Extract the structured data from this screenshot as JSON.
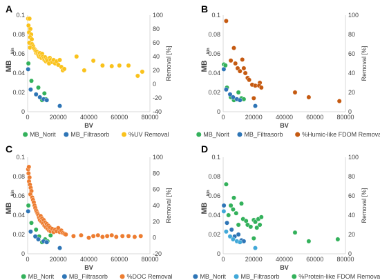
{
  "chart_data": [
    {
      "panel": "A",
      "type": "scatter",
      "xlabel": "BV",
      "ylabel": "MB",
      "ylabel_sub": "kin",
      "y2label": "Removal [%]",
      "xlim": [
        0,
        80000
      ],
      "ylim": [
        0,
        0.1
      ],
      "y2lim": [
        -40,
        100
      ],
      "xticks": [
        "0",
        "20000",
        "40000",
        "60000",
        "80000"
      ],
      "yticks": [
        "0",
        "0.02",
        "0.04",
        "0.06",
        "0.08",
        "0.1"
      ],
      "y2ticks": [
        "-40",
        "-20",
        "0",
        "20",
        "40",
        "60",
        "80",
        "100"
      ],
      "series": [
        {
          "name": "MB_Norit",
          "axis": "left",
          "color": "#33b15b",
          "points": [
            [
              500,
              0.05
            ],
            [
              2500,
              0.032
            ],
            [
              7000,
              0.025
            ],
            [
              9500,
              0.012
            ],
            [
              11000,
              0.019
            ],
            [
              12000,
              0.013
            ]
          ]
        },
        {
          "name": "MB_Filtrasorb",
          "axis": "left",
          "color": "#2e75b6",
          "points": [
            [
              300,
              0.044
            ],
            [
              2000,
              0.023
            ],
            [
              5500,
              0.018
            ],
            [
              8000,
              0.015
            ],
            [
              10500,
              0.013
            ],
            [
              12500,
              0.012
            ],
            [
              21000,
              0.006
            ]
          ]
        },
        {
          "name": "%UV Removal",
          "axis": "right",
          "color": "#fac21b",
          "points": [
            [
              300,
              95
            ],
            [
              1200,
              95
            ],
            [
              600,
              85
            ],
            [
              1800,
              80
            ],
            [
              900,
              75
            ],
            [
              2300,
              72
            ],
            [
              1600,
              68
            ],
            [
              2700,
              65
            ],
            [
              1100,
              60
            ],
            [
              2900,
              58
            ],
            [
              3600,
              55
            ],
            [
              1500,
              53
            ],
            [
              4000,
              52
            ],
            [
              4800,
              50
            ],
            [
              5200,
              48
            ],
            [
              5600,
              45
            ],
            [
              6000,
              47
            ],
            [
              6500,
              44
            ],
            [
              7000,
              42
            ],
            [
              7500,
              40
            ],
            [
              8000,
              45
            ],
            [
              8500,
              41
            ],
            [
              9000,
              38
            ],
            [
              9500,
              44
            ],
            [
              10000,
              40
            ],
            [
              10500,
              37
            ],
            [
              11000,
              35
            ],
            [
              11500,
              39
            ],
            [
              12000,
              33
            ],
            [
              12500,
              36
            ],
            [
              13000,
              34
            ],
            [
              14000,
              30
            ],
            [
              14500,
              38
            ],
            [
              15000,
              35
            ],
            [
              16000,
              32
            ],
            [
              17000,
              35
            ],
            [
              18000,
              30
            ],
            [
              19000,
              33
            ],
            [
              20000,
              28
            ],
            [
              21000,
              35
            ],
            [
              22000,
              25
            ],
            [
              23000,
              20
            ],
            [
              24000,
              22
            ],
            [
              32000,
              40
            ],
            [
              37000,
              20
            ],
            [
              43000,
              34
            ],
            [
              49000,
              27
            ],
            [
              55000,
              26
            ],
            [
              60000,
              27
            ],
            [
              66000,
              27
            ],
            [
              72000,
              12
            ],
            [
              75000,
              18
            ]
          ]
        }
      ]
    },
    {
      "panel": "B",
      "type": "scatter",
      "xlabel": "BV",
      "ylabel": "MB",
      "ylabel_sub": "kin",
      "y2label": "Removal [%]",
      "xlim": [
        0,
        80000
      ],
      "ylim": [
        0,
        0.1
      ],
      "y2lim": [
        0,
        100
      ],
      "xticks": [
        "0",
        "20000",
        "40000",
        "60000",
        "80000"
      ],
      "yticks": [
        "0",
        "0.02",
        "0.04",
        "0.06",
        "0.08",
        "0.1"
      ],
      "y2ticks": [
        "0",
        "20",
        "40",
        "60",
        "80",
        "100"
      ],
      "series": [
        {
          "name": "MB_Norit",
          "axis": "left",
          "color": "#33b15b",
          "points": [
            [
              500,
              0.049
            ],
            [
              1500,
              0.048
            ],
            [
              2500,
              0.025
            ],
            [
              5000,
              0.015
            ],
            [
              7000,
              0.012
            ],
            [
              10000,
              0.02
            ],
            [
              12000,
              0.014
            ],
            [
              13500,
              0.013
            ]
          ]
        },
        {
          "name": "MB_Filtrasorb",
          "axis": "left",
          "color": "#2e75b6",
          "points": [
            [
              400,
              0.044
            ],
            [
              2000,
              0.023
            ],
            [
              4500,
              0.018
            ],
            [
              6500,
              0.015
            ],
            [
              9000,
              0.013
            ],
            [
              11000,
              0.012
            ],
            [
              21000,
              0.006
            ]
          ]
        },
        {
          "name": "%Humic-like FDOM Removal",
          "axis": "right",
          "color": "#c55a11",
          "points": [
            [
              2000,
              94
            ],
            [
              7000,
              66
            ],
            [
              5000,
              53
            ],
            [
              8000,
              50
            ],
            [
              9500,
              45
            ],
            [
              12500,
              54
            ],
            [
              13500,
              45
            ],
            [
              11000,
              42
            ],
            [
              14500,
              40
            ],
            [
              16000,
              35
            ],
            [
              17000,
              33
            ],
            [
              19000,
              28
            ],
            [
              21000,
              27
            ],
            [
              24000,
              30
            ],
            [
              23500,
              27
            ],
            [
              25000,
              25
            ],
            [
              20000,
              14
            ],
            [
              47000,
              20
            ],
            [
              56000,
              15
            ],
            [
              76000,
              11
            ]
          ]
        }
      ]
    },
    {
      "panel": "C",
      "type": "scatter",
      "xlabel": "BV",
      "ylabel": "MB",
      "ylabel_sub": "kin",
      "y2label": "Removal [%]",
      "xlim": [
        0,
        80000
      ],
      "ylim": [
        0,
        0.1
      ],
      "y2lim": [
        -20,
        100
      ],
      "xticks": [
        "0",
        "20000",
        "40000",
        "60000",
        "80000"
      ],
      "yticks": [
        "0",
        "0.02",
        "0.04",
        "0.06",
        "0.08",
        "0.1"
      ],
      "y2ticks": [
        "-20",
        "0",
        "20",
        "40",
        "60",
        "80",
        "100"
      ],
      "series": [
        {
          "name": "MB_Norit",
          "axis": "left",
          "color": "#33b15b",
          "points": [
            [
              500,
              0.05
            ],
            [
              2500,
              0.032
            ],
            [
              5500,
              0.025
            ],
            [
              7500,
              0.018
            ],
            [
              9500,
              0.012
            ],
            [
              11500,
              0.015
            ],
            [
              13000,
              0.013
            ],
            [
              15000,
              0.019
            ]
          ]
        },
        {
          "name": "MB_Filtrasorb",
          "axis": "left",
          "color": "#2e75b6",
          "points": [
            [
              300,
              0.044
            ],
            [
              2000,
              0.023
            ],
            [
              5000,
              0.018
            ],
            [
              7000,
              0.015
            ],
            [
              10500,
              0.013
            ],
            [
              12500,
              0.012
            ],
            [
              21000,
              0.006
            ]
          ]
        },
        {
          "name": "%DOC Removal",
          "axis": "right",
          "color": "#ed7d31",
          "points": [
            [
              300,
              85
            ],
            [
              800,
              88
            ],
            [
              600,
              80
            ],
            [
              1200,
              75
            ],
            [
              900,
              70
            ],
            [
              1500,
              66
            ],
            [
              2000,
              62
            ],
            [
              2500,
              58
            ],
            [
              1800,
              54
            ],
            [
              3000,
              50
            ],
            [
              3500,
              47
            ],
            [
              4000,
              44
            ],
            [
              4500,
              40
            ],
            [
              5000,
              37
            ],
            [
              5500,
              34
            ],
            [
              6000,
              32
            ],
            [
              6500,
              30
            ],
            [
              7000,
              28
            ],
            [
              7500,
              25
            ],
            [
              8000,
              22
            ],
            [
              8500,
              27
            ],
            [
              9000,
              20
            ],
            [
              9500,
              24
            ],
            [
              10000,
              18
            ],
            [
              10500,
              22
            ],
            [
              11000,
              15
            ],
            [
              11500,
              19
            ],
            [
              12000,
              13
            ],
            [
              12500,
              17
            ],
            [
              13000,
              11
            ],
            [
              13500,
              15
            ],
            [
              14000,
              9
            ],
            [
              14500,
              13
            ],
            [
              15000,
              8
            ],
            [
              16000,
              11
            ],
            [
              17000,
              7
            ],
            [
              18000,
              10
            ],
            [
              19000,
              8
            ],
            [
              20000,
              12
            ],
            [
              21000,
              7
            ],
            [
              22000,
              9
            ],
            [
              23000,
              6
            ],
            [
              24000,
              5
            ],
            [
              25000,
              4
            ],
            [
              30000,
              2
            ],
            [
              35000,
              3
            ],
            [
              40000,
              0
            ],
            [
              43000,
              2
            ],
            [
              46000,
              3
            ],
            [
              49000,
              1
            ],
            [
              52000,
              2
            ],
            [
              55000,
              3
            ],
            [
              58000,
              1
            ],
            [
              62000,
              2
            ],
            [
              66000,
              2
            ],
            [
              70000,
              1
            ],
            [
              74000,
              2
            ]
          ]
        }
      ]
    },
    {
      "panel": "D",
      "type": "scatter",
      "xlabel": "BV",
      "ylabel": "MB",
      "ylabel_sub": "kin",
      "y2label": "Removal [%]",
      "xlim": [
        0,
        80000
      ],
      "ylim": [
        0,
        0.1
      ],
      "y2lim": [
        0,
        100
      ],
      "xticks": [
        "0",
        "20000",
        "40000",
        "60000",
        "80000"
      ],
      "yticks": [
        "0",
        "0.02",
        "0.04",
        "0.06",
        "0.08",
        "0.1"
      ],
      "y2ticks": [
        "0",
        "20",
        "40",
        "60",
        "80",
        "100"
      ],
      "series": [
        {
          "name": "MB_Norit",
          "axis": "left",
          "color": "#2e75b6",
          "points": [
            [
              500,
              0.05
            ],
            [
              2500,
              0.032
            ],
            [
              5500,
              0.025
            ],
            [
              7500,
              0.018
            ],
            [
              10000,
              0.02
            ],
            [
              12000,
              0.014
            ],
            [
              13500,
              0.013
            ]
          ]
        },
        {
          "name": "MB_Filtrasorb",
          "axis": "left",
          "color": "#41a8d8",
          "points": [
            [
              400,
              0.044
            ],
            [
              2000,
              0.023
            ],
            [
              4500,
              0.018
            ],
            [
              6500,
              0.015
            ],
            [
              9000,
              0.013
            ],
            [
              11000,
              0.012
            ],
            [
              21000,
              0.006
            ]
          ]
        },
        {
          "name": "%Protein-like FDOM Removal",
          "axis": "right",
          "color": "#33b15b",
          "points": [
            [
              2000,
              72
            ],
            [
              7000,
              58
            ],
            [
              5000,
              50
            ],
            [
              3500,
              40
            ],
            [
              6500,
              46
            ],
            [
              8500,
              42
            ],
            [
              10000,
              30
            ],
            [
              12000,
              52
            ],
            [
              13000,
              36
            ],
            [
              15000,
              34
            ],
            [
              16000,
              30
            ],
            [
              18000,
              28
            ],
            [
              20000,
              35
            ],
            [
              21000,
              33
            ],
            [
              22000,
              27
            ],
            [
              23000,
              36
            ],
            [
              24000,
              30
            ],
            [
              25000,
              38
            ],
            [
              20000,
              16
            ],
            [
              47000,
              22
            ],
            [
              56000,
              13
            ],
            [
              75000,
              15
            ]
          ]
        }
      ]
    }
  ]
}
